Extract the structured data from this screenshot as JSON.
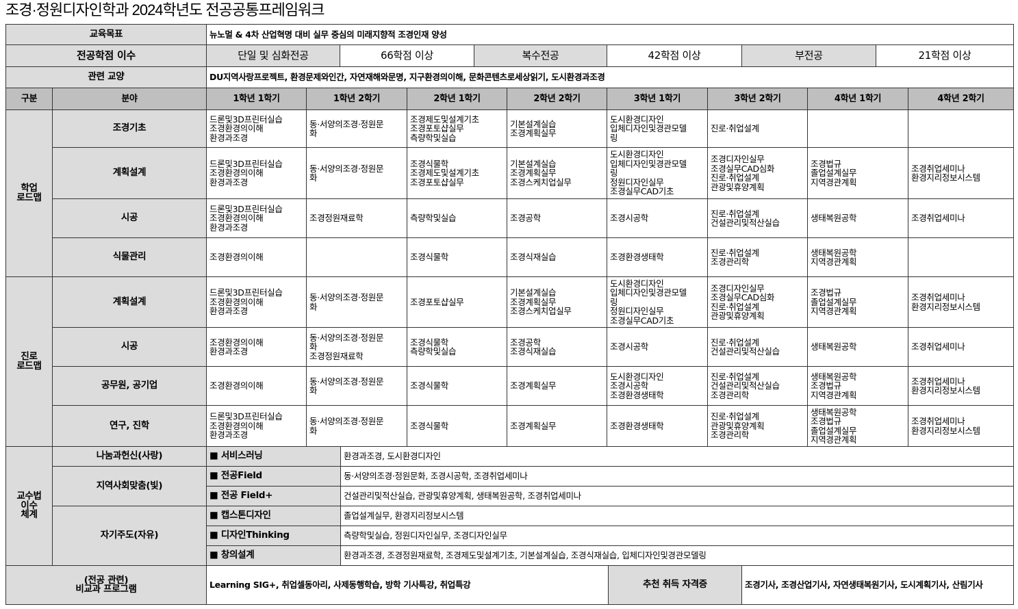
{
  "title": "조경·정원디자인학과 2024학년도 전공공통프레임워크",
  "goal": {
    "label": "교육목표",
    "value": "뉴노멀 & 4차 산업혁명 대비 실무 중심의 미래지향적 조경인재 양성"
  },
  "credits": {
    "label": "전공학점 이수",
    "items": [
      {
        "type": "단일 및 심화전공",
        "value": "66학점 이상"
      },
      {
        "type": "복수전공",
        "value": "42학점 이상"
      },
      {
        "type": "부전공",
        "value": "21학점 이상"
      }
    ]
  },
  "liberal": {
    "label": "관련 교양",
    "value": "DU지역사랑프로젝트, 환경문제와인간, 자연재해와문명, 지구환경의이해, 문화콘텐츠로세상읽기, 도시환경과조경"
  },
  "header": {
    "category": "구분",
    "field": "분야",
    "semesters": [
      "1학년 1학기",
      "1학년 2학기",
      "2학년 1학기",
      "2학년 2학기",
      "3학년 1학기",
      "3학년 2학기",
      "4학년 1학기",
      "4학년 2학기"
    ]
  },
  "roadmaps": [
    {
      "group": "학업\n로드맵",
      "rows": [
        {
          "field": "조경기초",
          "cells": [
            "드론및3D프린터실습\n조경환경의이해\n환경과조경",
            "동·서양의조경·정원문\n화",
            "조경제도및설계기초\n조경포토샵실무\n측량학및실습",
            "기본설계실습\n조경계획실무",
            "도시환경디자인\n입체디자인및경관모델\n링",
            "진로·취업설계",
            "",
            ""
          ]
        },
        {
          "field": "계획설계",
          "cells": [
            "드론및3D프린터실습\n조경환경의이해\n환경과조경",
            "동·서양의조경·정원문\n화",
            "조경식물학\n조경제도및설계기초\n조경포토샵실무",
            "기본설계실습\n조경계획실무\n조경스케치업실무",
            "도시환경디자인\n입체디자인및경관모델\n링\n정원디자인실무\n조경실무CAD기초",
            "조경디자인실무\n조경실무CAD심화\n진로·취업설계\n관광및휴양계획",
            "조경법규\n졸업설계실무\n지역경관계획",
            "조경취업세미나\n환경지리정보시스템"
          ]
        },
        {
          "field": "시공",
          "cells": [
            "드론및3D프린터실습\n조경환경의이해\n환경과조경",
            "조경정원재료학",
            "측량학및실습",
            "조경공학",
            "조경시공학",
            "진로·취업설계\n건설관리및적산실습",
            "생태복원공학",
            "조경취업세미나"
          ]
        },
        {
          "field": "식물관리",
          "cells": [
            "조경환경의이해",
            "",
            "조경식물학",
            "조경식재실습",
            "조경환경생태학",
            "진로·취업설계\n조경관리학",
            "생태복원공학\n지역경관계획",
            ""
          ]
        }
      ]
    },
    {
      "group": "진로\n로드맵",
      "rows": [
        {
          "field": "계획설계",
          "cells": [
            "드론및3D프린터실습\n조경환경의이해\n환경과조경",
            "동·서양의조경·정원문\n화",
            "조경포토샵실무",
            "기본설계실습\n조경계획실무\n조경스케치업실무",
            "도시환경디자인\n입체디자인및경관모델\n링\n정원디자인실무\n조경실무CAD기초",
            "조경디자인실무\n조경실무CAD심화\n진로·취업설계\n관광및휴양계획",
            "조경법규\n졸업설계실무\n지역경관계획",
            "조경취업세미나\n환경지리정보시스템"
          ]
        },
        {
          "field": "시공",
          "cells": [
            "조경환경의이해\n환경과조경",
            "동·서양의조경·정원문\n화\n조경정원재료학",
            "조경식물학\n측량학및실습",
            "조경공학\n조경식재실습",
            "조경시공학",
            "진로·취업설계\n건설관리및적산실습",
            "생태복원공학",
            "조경취업세미나"
          ]
        },
        {
          "field": "공무원, 공기업",
          "cells": [
            "조경환경의이해",
            "동·서양의조경·정원문\n화",
            "조경식물학",
            "조경계획실무",
            "도시환경디자인\n조경시공학\n조경환경생태학",
            "진로·취업설계\n건설관리및적산실습\n조경관리학",
            "생태복원공학\n조경법규\n지역경관계획",
            "조경취업세미나\n환경지리정보시스템"
          ]
        },
        {
          "field": "연구, 진학",
          "cells": [
            "드론및3D프린터실습\n조경환경의이해\n환경과조경",
            "동·서양의조경·정원문\n화",
            "조경식물학",
            "조경계획실무",
            "조경환경생태학",
            "진로·취업설계\n관광및휴양계획\n조경관리학",
            "생태복원공학\n조경법규\n졸업설계실무\n지역경관계획",
            "조경취업세미나\n환경지리정보시스템"
          ]
        }
      ]
    }
  ],
  "teaching": {
    "label": "교수법\n이수\n체계",
    "groups": [
      {
        "name": "나눔과헌신(사랑)",
        "methods": [
          {
            "label": "■ 서비스러닝",
            "courses": "환경과조경, 도시환경디자인"
          }
        ]
      },
      {
        "name": "지역사회맞춤(빛)",
        "methods": [
          {
            "label": "■ 전공Field",
            "courses": "동·서양의조경·정원문화, 조경시공학, 조경취업세미나"
          },
          {
            "label": "■ 전공 Field+",
            "courses": "건설관리및적산실습, 관광및휴양계획, 생태복원공학, 조경취업세미나"
          }
        ]
      },
      {
        "name": "자기주도(자유)",
        "methods": [
          {
            "label": "■ 캡스톤디자인",
            "courses": "졸업설계실무, 환경지리정보시스템"
          },
          {
            "label": "■ 디자인Thinking",
            "courses": "측량학및실습, 정원디자인실무, 조경디자인실무"
          },
          {
            "label": "■ 창의설계",
            "courses": "환경과조경, 조경정원재료학, 조경제도및설계기초, 기본설계실습, 조경식재실습, 입체디자인및경관모델링"
          }
        ]
      }
    ]
  },
  "extra": {
    "label": "(전공 관련)\n비교과 프로그램",
    "value": "Learning SIG+, 취업셀동아리, 사제동행학습, 방학 기사특강, 취업특강",
    "cert_label": "추천 취득 자격증",
    "cert_value": "조경기사, 조경산업기사, 자연생태복원기사, 도시계획기사, 산림기사"
  }
}
